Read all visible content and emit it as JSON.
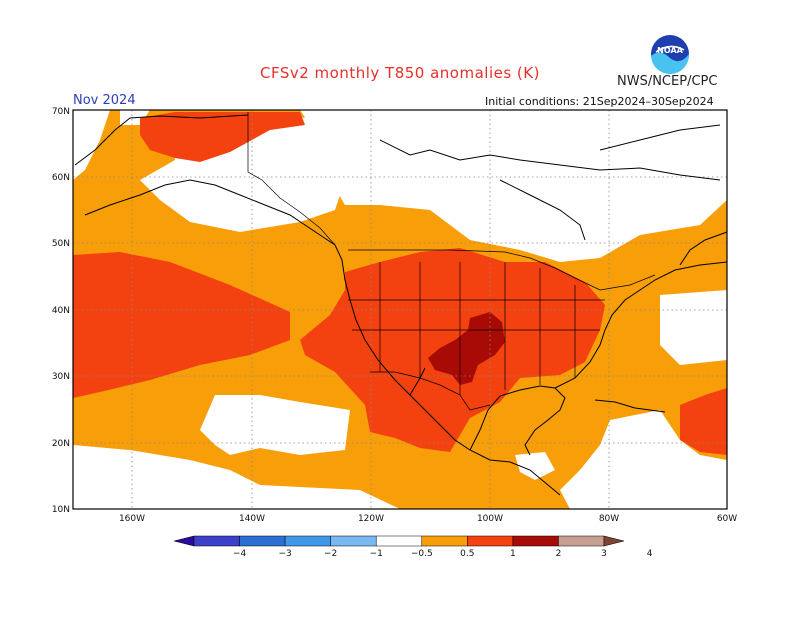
{
  "header": {
    "title": "CFSv2 monthly T850 anomalies (K)",
    "agency": "NWS/NCEP/CPC",
    "month": "Nov 2024",
    "initial_conditions": "Initial conditions: 21Sep2024–30Sep2024"
  },
  "logo": {
    "text": "NOAA",
    "icon": "noaa-logo"
  },
  "map": {
    "lat_labels": [
      "70N",
      "60N",
      "50N",
      "40N",
      "30N",
      "20N",
      "10N"
    ],
    "lon_labels": [
      "160W",
      "140W",
      "120W",
      "100W",
      "80W",
      "60W"
    ],
    "lon_range": [
      -170,
      -60
    ],
    "lat_range": [
      10,
      70
    ]
  },
  "colorbar": {
    "labels": [
      "−4",
      "−3",
      "−2",
      "−1",
      "−0.5",
      "0.5",
      "1",
      "2",
      "3",
      "4"
    ],
    "colors": [
      "#2a0c9c",
      "#3d40c8",
      "#2c6fd2",
      "#3f98e8",
      "#79b8f0",
      "#ffffff",
      "#f89e08",
      "#f3420f",
      "#a80a06",
      "#c79f92",
      "#7e4433"
    ]
  }
}
